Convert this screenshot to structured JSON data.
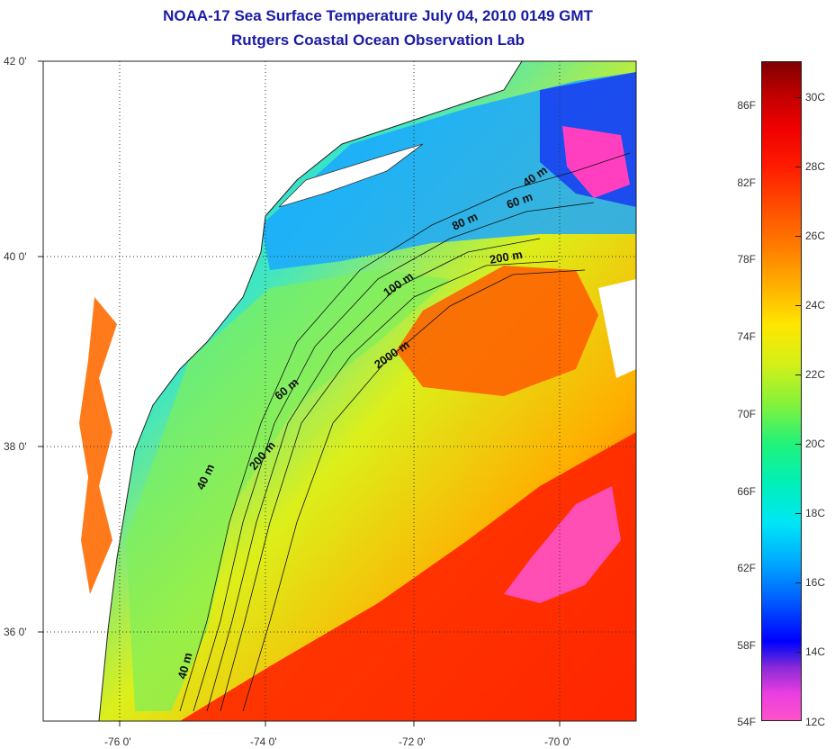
{
  "title_line1": "NOAA-17 Sea Surface Temperature July 04, 2010 0149 GMT",
  "title_line2": "Rutgers Coastal Ocean Observation Lab",
  "lat_labels": [
    "42 0'",
    "40 0'",
    "38 0'",
    "36 0'"
  ],
  "lon_labels": [
    "-76 0'",
    "-74 0'",
    "-72 0'",
    "-70 0'"
  ],
  "isobath_labels": [
    "40 m",
    "60 m",
    "80 m",
    "200 m",
    "100 m",
    "2000 m",
    "60 m",
    "200 m",
    "40 m",
    "40 m"
  ],
  "colorbar": {
    "fahrenheit_labels": [
      "86F",
      "82F",
      "78F",
      "74F",
      "70F",
      "66F",
      "62F",
      "58F",
      "54F"
    ],
    "celsius_labels": [
      "30C",
      "28C",
      "26C",
      "24C",
      "22C",
      "20C",
      "18C",
      "16C",
      "14C",
      "12C"
    ]
  },
  "colors": {
    "title": "#1a1aa6",
    "land": "#ffffff"
  }
}
